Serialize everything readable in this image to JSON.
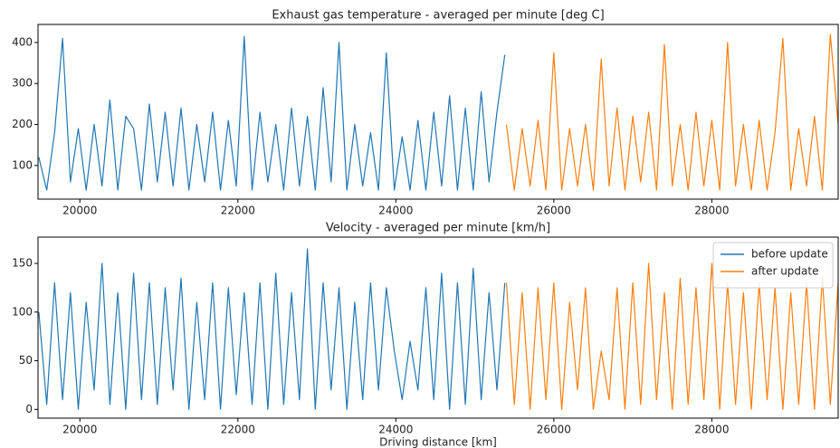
{
  "chart_data": [
    {
      "type": "line",
      "title": "Exhaust gas temperature - averaged per minute [deg C]",
      "xlim": [
        19470,
        29600
      ],
      "ylim": [
        18,
        444
      ],
      "xticks": [
        20000,
        22000,
        24000,
        26000,
        28000
      ],
      "yticks": [
        100,
        200,
        300,
        400
      ],
      "series": [
        {
          "color": "#1f77b4",
          "x": [
            19480,
            19580,
            19680,
            19780,
            19880,
            19980,
            20080,
            20180,
            20280,
            20380,
            20480,
            20580,
            20680,
            20780,
            20880,
            20980,
            21080,
            21180,
            21280,
            21380,
            21480,
            21580,
            21680,
            21780,
            21880,
            21980,
            22080,
            22180,
            22280,
            22380,
            22480,
            22580,
            22680,
            22780,
            22880,
            22980,
            23080,
            23180,
            23280,
            23380,
            23480,
            23580,
            23680,
            23780,
            23880,
            23980,
            24080,
            24180,
            24280,
            24380,
            24480,
            24580,
            24680,
            24780,
            24880,
            24980,
            25080,
            25180,
            25280,
            25380
          ],
          "values": [
            120,
            40,
            180,
            410,
            60,
            190,
            40,
            200,
            50,
            260,
            40,
            220,
            190,
            40,
            250,
            60,
            230,
            50,
            240,
            40,
            200,
            60,
            230,
            40,
            210,
            50,
            415,
            40,
            230,
            60,
            200,
            40,
            240,
            50,
            220,
            40,
            290,
            60,
            400,
            40,
            200,
            50,
            180,
            40,
            375,
            40,
            170,
            40,
            210,
            40,
            230,
            50,
            270,
            40,
            240,
            40,
            280,
            60,
            230,
            370
          ]
        },
        {
          "color": "#ff7f0e",
          "x": [
            25400,
            25500,
            25600,
            25700,
            25800,
            25900,
            26000,
            26100,
            26200,
            26300,
            26400,
            26500,
            26600,
            26700,
            26800,
            26900,
            27000,
            27100,
            27200,
            27300,
            27400,
            27500,
            27600,
            27700,
            27800,
            27900,
            28000,
            28100,
            28200,
            28300,
            28400,
            28500,
            28600,
            28700,
            28800,
            28900,
            29000,
            29100,
            29200,
            29300,
            29400,
            29500,
            29600
          ],
          "values": [
            200,
            40,
            190,
            50,
            210,
            40,
            375,
            40,
            190,
            50,
            200,
            40,
            360,
            50,
            240,
            40,
            220,
            60,
            230,
            40,
            395,
            50,
            200,
            40,
            230,
            50,
            210,
            40,
            400,
            50,
            200,
            40,
            210,
            40,
            180,
            410,
            40,
            190,
            50,
            220,
            40,
            420,
            200
          ]
        }
      ]
    },
    {
      "type": "line",
      "title": "Velocity - averaged per minute [km/h]",
      "x_label": "Driving distance [km]",
      "xlim": [
        19470,
        29600
      ],
      "ylim": [
        -9,
        177
      ],
      "xticks": [
        20000,
        22000,
        24000,
        26000,
        28000
      ],
      "yticks": [
        0,
        50,
        100,
        150
      ],
      "legend": "upper right",
      "series": [
        {
          "name": "before update",
          "color": "#1f77b4",
          "x": [
            19480,
            19580,
            19680,
            19780,
            19880,
            19980,
            20080,
            20180,
            20280,
            20380,
            20480,
            20580,
            20680,
            20780,
            20880,
            20980,
            21080,
            21180,
            21280,
            21380,
            21480,
            21580,
            21680,
            21780,
            21880,
            21980,
            22080,
            22180,
            22280,
            22380,
            22480,
            22580,
            22680,
            22780,
            22880,
            22980,
            23080,
            23180,
            23280,
            23380,
            23480,
            23580,
            23680,
            23780,
            23880,
            23980,
            24080,
            24180,
            24280,
            24380,
            24480,
            24580,
            24680,
            24780,
            24880,
            24980,
            25080,
            25180,
            25280,
            25380
          ],
          "values": [
            100,
            5,
            130,
            10,
            120,
            0,
            110,
            20,
            150,
            5,
            120,
            0,
            140,
            10,
            130,
            5,
            125,
            20,
            135,
            0,
            110,
            10,
            130,
            0,
            125,
            15,
            120,
            5,
            130,
            0,
            140,
            5,
            120,
            10,
            165,
            0,
            130,
            20,
            125,
            0,
            110,
            10,
            130,
            20,
            125,
            60,
            10,
            70,
            20,
            125,
            10,
            140,
            0,
            130,
            5,
            145,
            10,
            120,
            20,
            130
          ]
        },
        {
          "name": "after update",
          "color": "#ff7f0e",
          "x": [
            25400,
            25500,
            25600,
            25700,
            25800,
            25900,
            26000,
            26100,
            26200,
            26300,
            26400,
            26500,
            26600,
            26700,
            26800,
            26900,
            27000,
            27100,
            27200,
            27300,
            27400,
            27500,
            27600,
            27700,
            27800,
            27900,
            28000,
            28100,
            28200,
            28300,
            28400,
            28500,
            28600,
            28700,
            28800,
            28900,
            29000,
            29100,
            29200,
            29300,
            29400,
            29500,
            29600
          ],
          "values": [
            130,
            5,
            120,
            0,
            125,
            10,
            130,
            0,
            110,
            20,
            125,
            0,
            60,
            10,
            125,
            0,
            130,
            5,
            150,
            10,
            120,
            0,
            135,
            5,
            125,
            10,
            150,
            0,
            130,
            5,
            120,
            0,
            130,
            10,
            125,
            0,
            120,
            5,
            130,
            0,
            135,
            5,
            130
          ]
        }
      ]
    }
  ]
}
